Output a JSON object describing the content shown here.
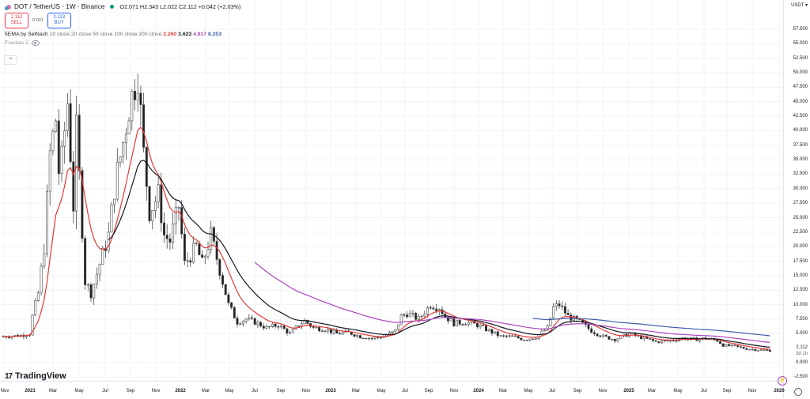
{
  "header": {
    "symbol": "DOT / TetherUS · 1W · Binance",
    "ohlc": "O2.071 H2.343 L2.022 C2.112 +0.042 (+2.03%)",
    "sell_price": "2.112",
    "sell_label": "SELL",
    "spread": "0.001",
    "buy_price": "2.113",
    "buy_label": "BUY"
  },
  "indicators": {
    "ema_name": "5EMA by SelNach",
    "ema_params": "10 close 20 close 50 close 100 close 200 close",
    "ema_values": [
      "2.260",
      "3.623",
      "4.817",
      "8.253"
    ],
    "fractals": "Fractals 2"
  },
  "axis": {
    "currency": "USDT ▾",
    "price_ticks": [
      "57.500",
      "55.000",
      "52.500",
      "50.000",
      "47.500",
      "45.000",
      "42.500",
      "40.000",
      "37.500",
      "35.000",
      "32.500",
      "30.000",
      "27.500",
      "25.000",
      "22.500",
      "20.000",
      "17.500",
      "15.000",
      "12.500",
      "10.000",
      "7.500",
      "5.000",
      "0.000",
      "-2.500"
    ],
    "last_price": "2.112",
    "countdown": "3d 1h",
    "time_ticks": [
      "Nov",
      "2021",
      "Mar",
      "May",
      "Jul",
      "Sep",
      "Nov",
      "2022",
      "Mar",
      "May",
      "Jul",
      "Sep",
      "Nov",
      "2023",
      "Mar",
      "May",
      "Jul",
      "Sep",
      "Nov",
      "2024",
      "Mar",
      "May",
      "Jul",
      "Sep",
      "Nov",
      "2025",
      "Mar",
      "May",
      "Jul",
      "Sep",
      "Nov",
      "2026"
    ]
  },
  "branding": {
    "logo_text": "TradingView"
  },
  "colors": {
    "ema10": "#e53935",
    "ema20": "#131722",
    "ema50": "#ab47bc",
    "ema100": "#3a5fa8",
    "up": "#ffffff",
    "down": "#131722"
  },
  "chart_data": {
    "type": "line",
    "title": "DOT / TetherUS · 1W · Binance",
    "xlabel": "",
    "ylabel": "USDT",
    "ylim": [
      -2.5,
      60
    ],
    "x": [
      "2020-11",
      "2021-01",
      "2021-03",
      "2021-05",
      "2021-07",
      "2021-09",
      "2021-11",
      "2022-01",
      "2022-03",
      "2022-05",
      "2022-07",
      "2022-09",
      "2022-11",
      "2023-01",
      "2023-03",
      "2023-05",
      "2023-07",
      "2023-09",
      "2023-11",
      "2024-01",
      "2024-03",
      "2024-05",
      "2024-07",
      "2024-09",
      "2024-11",
      "2025-01",
      "2025-03",
      "2025-05",
      "2025-07",
      "2025-09",
      "2025-11",
      "2026-01"
    ],
    "series": [
      {
        "name": "Close",
        "values": [
          4.8,
          8.0,
          35.0,
          28.0,
          15.0,
          30.0,
          42.0,
          27.0,
          18.0,
          10.0,
          7.0,
          6.5,
          5.5,
          6.0,
          6.2,
          5.5,
          5.0,
          4.2,
          5.5,
          8.0,
          9.5,
          7.0,
          6.0,
          4.5,
          7.5,
          6.5,
          4.5,
          4.5,
          4.0,
          4.0,
          3.0,
          2.1
        ]
      },
      {
        "name": "EMA 10",
        "values": [
          4.8,
          6.0,
          30.0,
          32.0,
          18.0,
          27.0,
          40.0,
          30.0,
          22.0,
          13.0,
          8.5,
          7.0,
          6.0,
          5.8,
          6.0,
          5.7,
          5.1,
          4.5,
          5.0,
          7.2,
          8.5,
          7.2,
          6.2,
          5.0,
          6.5,
          7.0,
          5.0,
          4.6,
          4.2,
          4.1,
          3.3,
          2.26
        ]
      },
      {
        "name": "EMA 20",
        "values": [
          null,
          null,
          null,
          null,
          18.0,
          22.0,
          27.0,
          27.5,
          24.0,
          21.0,
          17.5,
          13.5,
          10.5,
          9.0,
          8.0,
          7.2,
          6.6,
          6.0,
          5.8,
          6.5,
          7.2,
          7.0,
          6.4,
          5.8,
          6.2,
          6.5,
          5.8,
          5.3,
          4.9,
          4.6,
          4.1,
          3.62
        ]
      },
      {
        "name": "EMA 50",
        "values": [
          null,
          null,
          null,
          null,
          null,
          null,
          null,
          null,
          null,
          null,
          20.5,
          18.0,
          15.5,
          14.0,
          12.5,
          11.5,
          10.5,
          9.8,
          9.2,
          9.0,
          9.0,
          8.5,
          8.0,
          7.5,
          7.3,
          7.0,
          6.5,
          6.0,
          5.7,
          5.4,
          5.1,
          4.82
        ]
      },
      {
        "name": "EMA 100",
        "values": [
          null,
          null,
          null,
          null,
          null,
          null,
          null,
          null,
          null,
          null,
          null,
          null,
          null,
          null,
          null,
          null,
          null,
          null,
          null,
          null,
          null,
          13.5,
          12.6,
          12.0,
          11.5,
          11.0,
          10.5,
          10.0,
          9.6,
          9.2,
          8.7,
          8.25
        ]
      }
    ],
    "candles_keypoints": [
      [
        0,
        4.5
      ],
      [
        6,
        4.7
      ],
      [
        9,
        5.0
      ],
      [
        10,
        8
      ],
      [
        12,
        12
      ],
      [
        14,
        20
      ],
      [
        15,
        28
      ],
      [
        16,
        36
      ],
      [
        18,
        42
      ],
      [
        19,
        33
      ],
      [
        20,
        35
      ],
      [
        21,
        40
      ],
      [
        22,
        45
      ],
      [
        24,
        27
      ],
      [
        25,
        40
      ],
      [
        26,
        32
      ],
      [
        28,
        14
      ],
      [
        30,
        12
      ],
      [
        33,
        17
      ],
      [
        36,
        22
      ],
      [
        38,
        30
      ],
      [
        39,
        33
      ],
      [
        41,
        38
      ],
      [
        43,
        44
      ],
      [
        46,
        50
      ],
      [
        48,
        36
      ],
      [
        50,
        26
      ],
      [
        53,
        29
      ],
      [
        55,
        22
      ],
      [
        57,
        21
      ],
      [
        60,
        27
      ],
      [
        62,
        17
      ],
      [
        66,
        20
      ],
      [
        68,
        17
      ],
      [
        71,
        22
      ],
      [
        73,
        18
      ],
      [
        77,
        10
      ],
      [
        80,
        7.0
      ],
      [
        83,
        7.5
      ],
      [
        86,
        7.0
      ],
      [
        90,
        6.0
      ],
      [
        94,
        6.5
      ],
      [
        98,
        5.0
      ],
      [
        101,
        6.5
      ],
      [
        103,
        7.2
      ],
      [
        106,
        6.0
      ],
      [
        110,
        5.8
      ],
      [
        114,
        5.0
      ],
      [
        118,
        5.2
      ],
      [
        122,
        4.5
      ],
      [
        126,
        4.2
      ],
      [
        130,
        4.5
      ],
      [
        134,
        5.5
      ],
      [
        136,
        8.0
      ],
      [
        138,
        8.5
      ],
      [
        142,
        7.5
      ],
      [
        146,
        10.0
      ],
      [
        149,
        9.5
      ],
      [
        151,
        8.0
      ],
      [
        154,
        6.8
      ],
      [
        158,
        7.0
      ],
      [
        162,
        6.5
      ],
      [
        166,
        5.5
      ],
      [
        170,
        4.5
      ],
      [
        174,
        4.5
      ],
      [
        178,
        4.0
      ],
      [
        182,
        4.4
      ],
      [
        186,
        6.0
      ],
      [
        188,
        9.5
      ],
      [
        190,
        10.0
      ],
      [
        193,
        8.0
      ],
      [
        197,
        7.0
      ],
      [
        201,
        5.5
      ],
      [
        205,
        4.5
      ],
      [
        209,
        4.0
      ],
      [
        214,
        5.0
      ],
      [
        219,
        4.2
      ],
      [
        223,
        3.6
      ],
      [
        228,
        3.8
      ],
      [
        232,
        4.2
      ],
      [
        236,
        4.0
      ],
      [
        240,
        4.2
      ],
      [
        244,
        3.8
      ],
      [
        246,
        3.0
      ],
      [
        250,
        2.8
      ],
      [
        254,
        2.4
      ],
      [
        258,
        2.2
      ],
      [
        262,
        2.1
      ]
    ]
  }
}
